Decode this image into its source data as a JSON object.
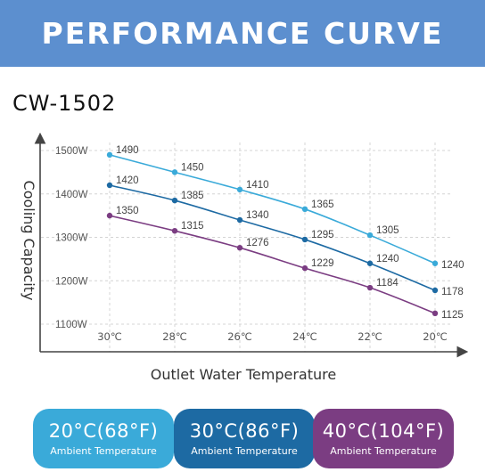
{
  "banner": {
    "title": "PERFORMANCE CURVE"
  },
  "model": "CW-1502",
  "chart_data": {
    "type": "line",
    "categories": [
      "30℃",
      "28℃",
      "26℃",
      "24℃",
      "22℃",
      "20℃"
    ],
    "xlabel": "Outlet Water Temperature",
    "ylabel": "Cooling Capacity",
    "yticks": [
      "1100W",
      "1200W",
      "1300W",
      "1400W",
      "1500W"
    ],
    "ytick_values": [
      1100,
      1200,
      1300,
      1400,
      1500
    ],
    "ylim": [
      1100,
      1500
    ],
    "grid": "vertical dashed",
    "series": [
      {
        "name": "20°C(68°F)",
        "color": "#3aaad9",
        "values": [
          1490,
          1450,
          1410,
          1365,
          1305,
          1240
        ]
      },
      {
        "name": "30°C(86°F)",
        "color": "#1d6aa3",
        "values": [
          1420,
          1385,
          1340,
          1295,
          1240,
          1178
        ]
      },
      {
        "name": "40°C(104°F)",
        "color": "#7b3d82",
        "values": [
          1350,
          1315,
          1276,
          1229,
          1184,
          1125
        ]
      }
    ]
  },
  "legend": [
    {
      "main": "20°C(68°F)",
      "sub": "Ambient Temperature",
      "color": "#3aaad9"
    },
    {
      "main": "30°C(86°F)",
      "sub": "Ambient Temperature",
      "color": "#1d6aa3"
    },
    {
      "main": "40°C(104°F)",
      "sub": "Ambient Temperature",
      "color": "#7b3d82"
    }
  ]
}
